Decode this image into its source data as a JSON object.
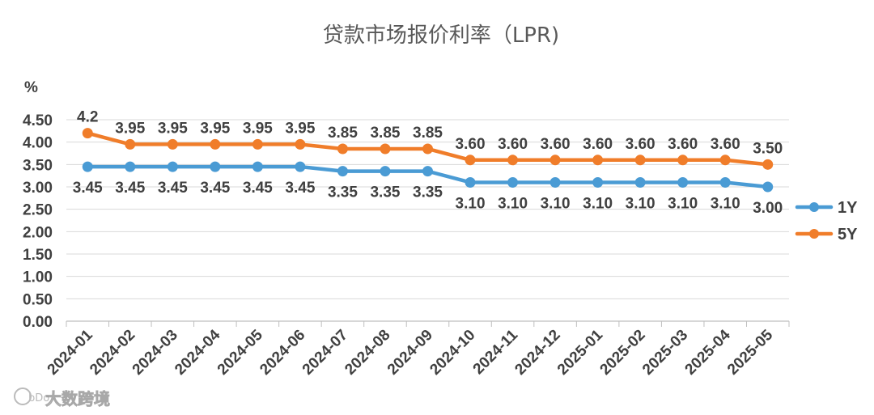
{
  "chart_data": {
    "type": "line",
    "title": "贷款市场报价利率（LPR)",
    "ylabel": "%",
    "xlabel": "",
    "ylim": [
      0,
      4.5
    ],
    "y_ticks": [
      "0.00",
      "0.50",
      "1.00",
      "1.50",
      "2.00",
      "2.50",
      "3.00",
      "3.50",
      "4.00",
      "4.50"
    ],
    "y_tick_values": [
      0,
      0.5,
      1,
      1.5,
      2,
      2.5,
      3,
      3.5,
      4,
      4.5
    ],
    "grid": true,
    "legend_position": "right",
    "categories": [
      "2024-01",
      "2024-02",
      "2024-03",
      "2024-04",
      "2024-05",
      "2024-06",
      "2024-07",
      "2024-08",
      "2024-09",
      "2024-10",
      "2024-11",
      "2024-12",
      "2025-01",
      "2025-02",
      "2025-03",
      "2025-04",
      "2025-05"
    ],
    "series": [
      {
        "name": "1Y",
        "color": "#4a9bd4",
        "values": [
          3.45,
          3.45,
          3.45,
          3.45,
          3.45,
          3.45,
          3.35,
          3.35,
          3.35,
          3.1,
          3.1,
          3.1,
          3.1,
          3.1,
          3.1,
          3.1,
          3.0
        ],
        "labels": [
          "3.45",
          "3.45",
          "3.45",
          "3.45",
          "3.45",
          "3.45",
          "3.35",
          "3.35",
          "3.35",
          "3.10",
          "3.10",
          "3.10",
          "3.10",
          "3.10",
          "3.10",
          "3.10",
          "3.00"
        ],
        "label_position": "below"
      },
      {
        "name": "5Y",
        "color": "#f07d2a",
        "values": [
          4.2,
          3.95,
          3.95,
          3.95,
          3.95,
          3.95,
          3.85,
          3.85,
          3.85,
          3.6,
          3.6,
          3.6,
          3.6,
          3.6,
          3.6,
          3.6,
          3.5
        ],
        "labels": [
          "4.2",
          "3.95",
          "3.95",
          "3.95",
          "3.95",
          "3.95",
          "3.85",
          "3.85",
          "3.85",
          "3.60",
          "3.60",
          "3.60",
          "3.60",
          "3.60",
          "3.60",
          "3.60",
          "3.50"
        ],
        "label_position": "above"
      }
    ]
  },
  "watermark": {
    "text": "大数跨境",
    "icon": "bdo-logo-icon",
    "logo_text": "bDo"
  }
}
